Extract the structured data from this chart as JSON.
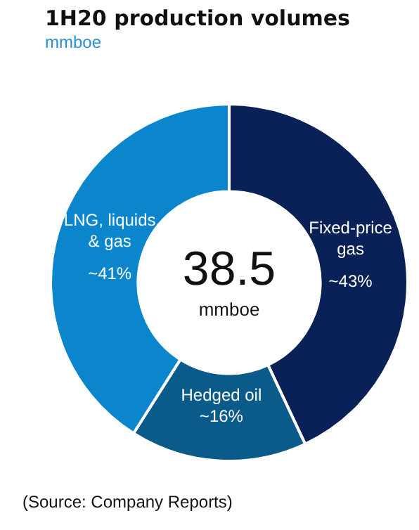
{
  "chart_data": {
    "type": "donut",
    "title": "1H20 production volumes",
    "subtitle": "mmboe",
    "categories": [
      "Fixed-price gas",
      "Hedged oil",
      "LNG, liquids & gas"
    ],
    "values": [
      43,
      16,
      41
    ],
    "colors": [
      "#0a2157",
      "#0b5b8a",
      "#0b85cc"
    ],
    "value_labels": [
      "~43%",
      "~16%",
      "~41%"
    ],
    "annotations": [
      "38.5",
      "mmboe",
      "(Source: Company Reports)"
    ]
  }
}
